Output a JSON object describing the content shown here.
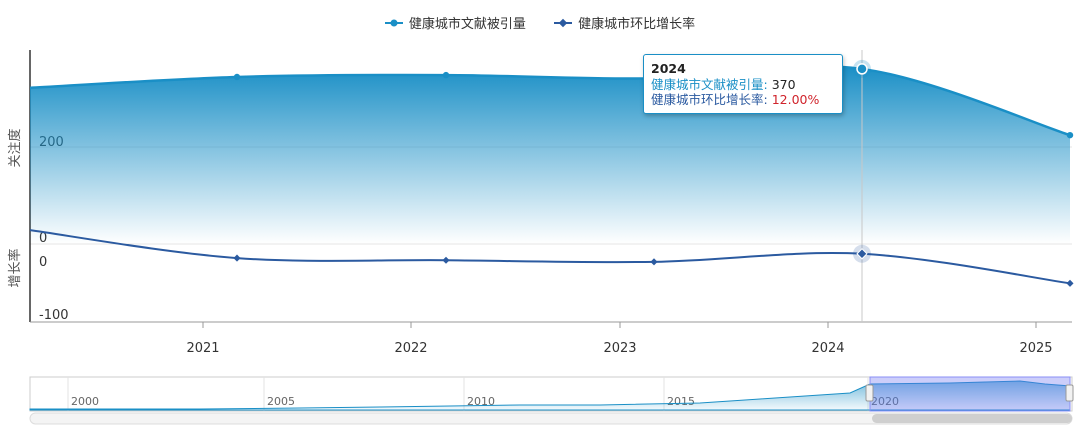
{
  "chart_data": {
    "type": "line",
    "legend": {
      "placement": "top-center",
      "items": [
        {
          "name": "健康城市文献被引量",
          "color": "#1a8fc6"
        },
        {
          "name": "健康城市环比增长率",
          "color": "#2b5aa0"
        }
      ]
    },
    "x_ticks": [
      "2021",
      "2022",
      "2023",
      "2024",
      "2025"
    ],
    "series": [
      {
        "name": "健康城市文献被引量",
        "axis": "top",
        "ylabel": "关注度",
        "yticks": [
          {
            "value": 200,
            "label": "200"
          },
          {
            "value": 0,
            "label": "0"
          }
        ],
        "ylim": [
          0,
          410
        ],
        "points": [
          {
            "x": "2020",
            "y": 330
          },
          {
            "x": "2021",
            "y": 353
          },
          {
            "x": "2022",
            "y": 357
          },
          {
            "x": "2023",
            "y": 350
          },
          {
            "x": "2024",
            "y": 370
          },
          {
            "x": "2025",
            "y": 230
          }
        ]
      },
      {
        "name": "健康城市环比增长率",
        "axis": "bottom",
        "ylabel": "增长率",
        "yticks": [
          {
            "value": 0,
            "label": "0"
          },
          {
            "value": -100,
            "label": "-100"
          }
        ],
        "ylim": [
          -115,
          60
        ],
        "points": [
          {
            "x": "2020",
            "y": 56
          },
          {
            "x": "2021",
            "y": 4
          },
          {
            "x": "2022",
            "y": 0
          },
          {
            "x": "2023",
            "y": -3
          },
          {
            "x": "2024",
            "y": 12
          },
          {
            "x": "2025",
            "y": -43
          }
        ]
      }
    ],
    "tooltip": {
      "title": "2024",
      "rows": [
        {
          "name": "健康城市文献被引量",
          "sep": ":",
          "value": "370"
        },
        {
          "name": "健康城市环比增长率",
          "sep": ":",
          "value": "12.00%"
        }
      ]
    },
    "navigator": {
      "labels": [
        "2000",
        "2005",
        "2010",
        "2015",
        "2020"
      ],
      "selected_range": [
        "2020",
        "2025"
      ]
    }
  }
}
